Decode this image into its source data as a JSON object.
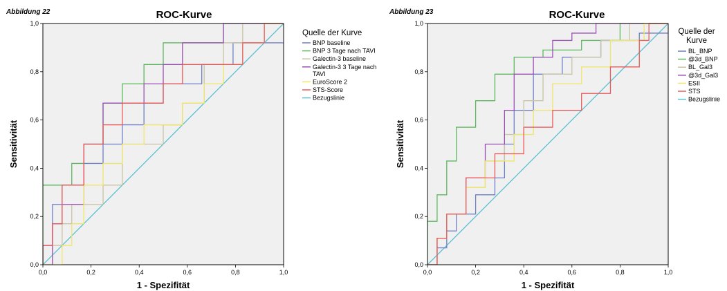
{
  "chart_data": [
    {
      "type": "line",
      "figure_label": "Abbildung 22",
      "title": "ROC-Kurve",
      "xlabel": "1 - Spezifität",
      "ylabel": "Sensitivität",
      "xlim": [
        0,
        1
      ],
      "ylim": [
        0,
        1
      ],
      "xticks": [
        "0,0",
        "0,2",
        "0,4",
        "0,6",
        "0,8",
        "1,0"
      ],
      "yticks": [
        "0,0",
        "0,2",
        "0,4",
        "0,6",
        "0,8",
        "1,0"
      ],
      "grid": false,
      "legend_title": "Quelle der Kurve",
      "legend_placement": "right",
      "series": [
        {
          "name": "BNP baseline",
          "color": "#6f7fc6",
          "x": [
            0,
            0,
            0.04,
            0.04,
            0.08,
            0.08,
            0.17,
            0.17,
            0.25,
            0.25,
            0.33,
            0.33,
            0.42,
            0.42,
            0.5,
            0.5,
            0.66,
            0.66,
            0.79,
            0.79,
            0.83,
            0.83,
            1.0
          ],
          "y": [
            0,
            0.08,
            0.08,
            0.25,
            0.25,
            0.33,
            0.33,
            0.42,
            0.42,
            0.5,
            0.5,
            0.58,
            0.58,
            0.67,
            0.67,
            0.75,
            0.75,
            0.83,
            0.83,
            0.92,
            0.92,
            0.92,
            0.92
          ]
        },
        {
          "name": "BNP 3 Tage nach TAVI",
          "color": "#5cb85c",
          "x": [
            0,
            0,
            0.12,
            0.12,
            0.17,
            0.17,
            0.25,
            0.25,
            0.33,
            0.33,
            0.42,
            0.42,
            0.5,
            0.5,
            0.58,
            0.58,
            0.75,
            0.75,
            0.83,
            0.83,
            1.0
          ],
          "y": [
            0,
            0.33,
            0.33,
            0.42,
            0.42,
            0.5,
            0.5,
            0.67,
            0.67,
            0.75,
            0.75,
            0.83,
            0.83,
            0.92,
            0.92,
            0.92,
            0.92,
            1.0,
            1.0,
            1.0,
            1.0
          ]
        },
        {
          "name": "Galectin-3 baseline",
          "color": "#c9c4a3",
          "x": [
            0,
            0.04,
            0.04,
            0.08,
            0.08,
            0.12,
            0.12,
            0.25,
            0.25,
            0.33,
            0.33,
            0.5,
            0.5,
            0.58,
            0.58,
            0.67,
            0.67,
            0.75,
            0.75,
            0.83,
            0.83,
            1.0
          ],
          "y": [
            0,
            0,
            0.08,
            0.08,
            0.17,
            0.17,
            0.25,
            0.25,
            0.33,
            0.33,
            0.5,
            0.5,
            0.58,
            0.58,
            0.67,
            0.67,
            0.83,
            0.83,
            0.92,
            0.92,
            1.0,
            1.0
          ]
        },
        {
          "name": "Galectin-3 3 Tage nach TAVI",
          "color": "#9b4fb5",
          "x": [
            0,
            0.04,
            0.04,
            0.08,
            0.08,
            0.17,
            0.17,
            0.25,
            0.25,
            0.42,
            0.42,
            0.5,
            0.5,
            0.58,
            0.58,
            0.75,
            0.75,
            0.83,
            0.83,
            1.0
          ],
          "y": [
            0,
            0,
            0.17,
            0.17,
            0.25,
            0.25,
            0.5,
            0.5,
            0.67,
            0.67,
            0.75,
            0.75,
            0.83,
            0.83,
            0.92,
            0.92,
            1.0,
            1.0,
            1.0,
            1.0
          ]
        },
        {
          "name": "EuroScore 2",
          "color": "#f0e66a",
          "x": [
            0,
            0.08,
            0.08,
            0.12,
            0.12,
            0.17,
            0.17,
            0.25,
            0.25,
            0.33,
            0.33,
            0.42,
            0.42,
            0.58,
            0.58,
            0.67,
            0.67,
            0.75,
            0.75,
            0.83,
            0.83,
            0.92,
            0.92,
            1.0
          ],
          "y": [
            0,
            0,
            0.08,
            0.08,
            0.17,
            0.17,
            0.33,
            0.33,
            0.42,
            0.42,
            0.5,
            0.5,
            0.58,
            0.58,
            0.67,
            0.67,
            0.75,
            0.75,
            0.83,
            0.83,
            0.92,
            0.92,
            1.0,
            1.0
          ]
        },
        {
          "name": "STS-Score",
          "color": "#e85a5a",
          "x": [
            0,
            0,
            0.04,
            0.04,
            0.08,
            0.08,
            0.17,
            0.17,
            0.25,
            0.25,
            0.33,
            0.33,
            0.5,
            0.5,
            0.58,
            0.58,
            0.83,
            0.83,
            0.92,
            0.92,
            1.0
          ],
          "y": [
            0,
            0.08,
            0.08,
            0.17,
            0.17,
            0.33,
            0.33,
            0.5,
            0.5,
            0.58,
            0.58,
            0.67,
            0.67,
            0.75,
            0.75,
            0.83,
            0.83,
            0.92,
            0.92,
            1.0,
            1.0
          ]
        },
        {
          "name": "Bezugslinie",
          "color": "#5bc0d2",
          "x": [
            0,
            1
          ],
          "y": [
            0,
            1
          ]
        }
      ]
    },
    {
      "type": "line",
      "figure_label": "Abbildung 23",
      "title": "ROC-Kurve",
      "xlabel": "1 - Spezifität",
      "ylabel": "Sensitivität",
      "xlim": [
        0,
        1
      ],
      "ylim": [
        0,
        1
      ],
      "xticks": [
        "0,0",
        "0,2",
        "0,4",
        "0,6",
        "0,8",
        "1,0"
      ],
      "yticks": [
        "0,0",
        "0,2",
        "0,4",
        "0,6",
        "0,8",
        "1,0"
      ],
      "grid": false,
      "legend_title": "Quelle der Kurve",
      "legend_placement": "right",
      "series": [
        {
          "name": "BL_BNP",
          "color": "#6f7fc6",
          "x": [
            0,
            0.04,
            0.04,
            0.08,
            0.08,
            0.12,
            0.12,
            0.2,
            0.2,
            0.28,
            0.28,
            0.32,
            0.32,
            0.36,
            0.36,
            0.44,
            0.44,
            0.56,
            0.56,
            0.72,
            0.72,
            0.88,
            0.88,
            1.0
          ],
          "y": [
            0,
            0,
            0.07,
            0.07,
            0.14,
            0.14,
            0.21,
            0.21,
            0.29,
            0.29,
            0.36,
            0.36,
            0.5,
            0.5,
            0.64,
            0.64,
            0.79,
            0.79,
            0.86,
            0.86,
            0.93,
            0.93,
            0.96,
            0.96
          ]
        },
        {
          "name": "@3d_BNP",
          "color": "#5cb85c",
          "x": [
            0,
            0,
            0.04,
            0.04,
            0.08,
            0.08,
            0.12,
            0.12,
            0.2,
            0.2,
            0.28,
            0.28,
            0.36,
            0.36,
            0.48,
            0.48,
            0.64,
            0.64,
            0.8,
            0.8,
            1.0
          ],
          "y": [
            0,
            0.18,
            0.18,
            0.29,
            0.29,
            0.43,
            0.43,
            0.57,
            0.57,
            0.68,
            0.68,
            0.79,
            0.79,
            0.86,
            0.86,
            0.89,
            0.89,
            0.93,
            0.93,
            1.0,
            1.0
          ]
        },
        {
          "name": "BL_Gal3",
          "color": "#c9c4a3",
          "x": [
            0,
            0.04,
            0.04,
            0.08,
            0.08,
            0.16,
            0.16,
            0.24,
            0.24,
            0.32,
            0.32,
            0.4,
            0.4,
            0.48,
            0.48,
            0.6,
            0.6,
            0.72,
            0.72,
            0.84,
            0.84,
            1.0
          ],
          "y": [
            0,
            0,
            0.11,
            0.11,
            0.21,
            0.21,
            0.32,
            0.32,
            0.43,
            0.43,
            0.54,
            0.54,
            0.68,
            0.68,
            0.79,
            0.79,
            0.86,
            0.86,
            0.93,
            0.93,
            1.0,
            1.0
          ]
        },
        {
          "name": "@3d_Gal3",
          "color": "#9b4fb5",
          "x": [
            0,
            0.04,
            0.04,
            0.08,
            0.08,
            0.16,
            0.16,
            0.24,
            0.24,
            0.32,
            0.32,
            0.36,
            0.36,
            0.44,
            0.44,
            0.52,
            0.52,
            0.6,
            0.6,
            0.7,
            0.7,
            1.0
          ],
          "y": [
            0,
            0,
            0.11,
            0.11,
            0.21,
            0.21,
            0.36,
            0.36,
            0.5,
            0.5,
            0.64,
            0.64,
            0.79,
            0.79,
            0.86,
            0.86,
            0.93,
            0.93,
            0.96,
            0.96,
            1.0,
            1.0
          ]
        },
        {
          "name": "ESII",
          "color": "#f0e66a",
          "x": [
            0,
            0.04,
            0.04,
            0.08,
            0.08,
            0.16,
            0.16,
            0.24,
            0.24,
            0.36,
            0.36,
            0.44,
            0.44,
            0.52,
            0.52,
            0.64,
            0.64,
            0.76,
            0.76,
            0.9,
            0.9,
            1.0
          ],
          "y": [
            0,
            0,
            0.11,
            0.11,
            0.21,
            0.21,
            0.32,
            0.32,
            0.43,
            0.43,
            0.54,
            0.54,
            0.64,
            0.64,
            0.75,
            0.75,
            0.82,
            0.82,
            0.93,
            0.93,
            1.0,
            1.0
          ]
        },
        {
          "name": "STS",
          "color": "#e85a5a",
          "x": [
            0,
            0.04,
            0.04,
            0.08,
            0.08,
            0.16,
            0.16,
            0.28,
            0.28,
            0.4,
            0.4,
            0.52,
            0.52,
            0.64,
            0.64,
            0.76,
            0.76,
            0.88,
            0.88,
            0.92,
            0.92,
            1.0
          ],
          "y": [
            0,
            0,
            0.11,
            0.11,
            0.21,
            0.21,
            0.36,
            0.36,
            0.46,
            0.46,
            0.57,
            0.57,
            0.64,
            0.64,
            0.71,
            0.71,
            0.82,
            0.82,
            0.93,
            0.93,
            1.0,
            1.0
          ]
        },
        {
          "name": "Bezugslinie",
          "color": "#5bc0d2",
          "x": [
            0,
            1
          ],
          "y": [
            0,
            1
          ]
        }
      ]
    }
  ]
}
